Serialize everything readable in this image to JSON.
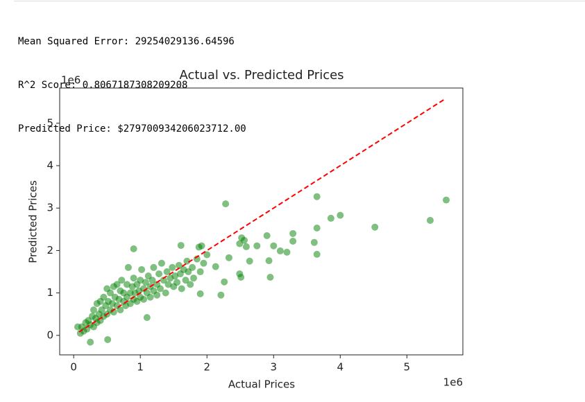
{
  "output": {
    "lines": [
      "Mean Squared Error: 29254029136.64596",
      "R^2 Score: 0.8067187308209208",
      "Predicted Price: $279700934206023712.00"
    ]
  },
  "chart_data": {
    "type": "scatter",
    "title": "Actual vs. Predicted Prices",
    "x_label": "Actual Prices",
    "y_label": "Predicted Prices",
    "x_offset_label": "1e6",
    "y_offset_label": "1e6",
    "color": "#008000",
    "x": [
      0.1,
      0.12,
      0.15,
      0.18,
      0.2,
      0.22,
      0.25,
      0.28,
      0.3,
      0.3,
      0.33,
      0.35,
      0.35,
      0.38,
      0.4,
      0.4,
      0.42,
      0.45,
      0.45,
      0.48,
      0.5,
      0.5,
      0.52,
      0.55,
      0.55,
      0.58,
      0.6,
      0.6,
      0.62,
      0.65,
      0.65,
      0.68,
      0.7,
      0.7,
      0.72,
      0.75,
      0.75,
      0.78,
      0.8,
      0.8,
      0.82,
      0.85,
      0.85,
      0.88,
      0.9,
      0.9,
      0.92,
      0.95,
      0.95,
      0.98,
      1.0,
      1.0,
      1.02,
      1.05,
      1.05,
      1.08,
      1.1,
      1.1,
      1.12,
      1.15,
      1.15,
      1.18,
      1.2,
      1.2,
      1.25,
      1.25,
      1.28,
      1.3,
      1.32,
      1.35,
      1.38,
      1.4,
      1.42,
      1.45,
      1.48,
      1.5,
      1.52,
      1.55,
      1.58,
      1.6,
      1.62,
      1.65,
      1.68,
      1.7,
      1.72,
      1.75,
      1.78,
      1.8,
      1.85,
      1.9,
      1.95,
      2.0,
      5.59,
      5.35,
      4.52,
      4.0,
      3.86,
      3.65,
      3.65,
      3.61,
      3.65,
      3.29,
      3.29,
      3.2,
      3.1,
      2.9,
      3.0,
      2.93,
      2.95,
      2.75,
      2.28,
      2.52,
      2.56,
      2.59,
      2.49,
      2.64,
      2.49,
      2.51,
      2.21,
      1.9,
      2.26,
      2.33,
      2.13,
      1.92,
      1.88,
      1.61,
      0.9,
      0.51,
      0.25,
      0.06
    ],
    "values": [
      0.05,
      0.2,
      0.1,
      0.3,
      0.15,
      0.35,
      0.25,
      0.45,
      0.2,
      0.6,
      0.4,
      0.3,
      0.75,
      0.5,
      0.35,
      0.8,
      0.6,
      0.45,
      0.9,
      0.7,
      0.5,
      1.1,
      0.8,
      0.6,
      1.0,
      0.75,
      0.55,
      1.15,
      0.9,
      0.7,
      1.2,
      0.85,
      0.6,
      1.05,
      1.3,
      0.8,
      1.0,
      0.7,
      1.2,
      0.9,
      1.6,
      1.0,
      0.75,
      1.15,
      0.85,
      1.35,
      1.0,
      1.2,
      0.8,
      1.05,
      1.3,
      0.9,
      1.55,
      1.1,
      0.85,
      1.25,
      1.0,
      0.42,
      1.4,
      1.15,
      0.9,
      1.3,
      1.05,
      1.6,
      1.2,
      0.95,
      1.45,
      1.1,
      1.7,
      1.3,
      1.0,
      1.5,
      1.2,
      1.35,
      1.6,
      1.15,
      1.4,
      1.25,
      1.65,
      1.45,
      1.1,
      1.55,
      1.3,
      1.75,
      1.5,
      1.2,
      1.6,
      1.35,
      1.8,
      1.5,
      1.7,
      1.9,
      3.19,
      2.71,
      2.55,
      2.83,
      2.76,
      3.27,
      2.53,
      2.19,
      1.91,
      2.4,
      2.22,
      1.96,
      1.99,
      2.35,
      2.11,
      1.76,
      1.37,
      2.11,
      3.1,
      2.3,
      2.24,
      2.09,
      2.16,
      1.75,
      1.45,
      1.37,
      0.95,
      0.98,
      1.26,
      1.83,
      1.62,
      2.11,
      2.08,
      2.12,
      2.04,
      -0.1,
      -0.16,
      0.2
    ],
    "reference_line": {
      "x": [
        0.08,
        5.57
      ],
      "values": [
        0.08,
        5.57
      ],
      "color": "#ff0000"
    },
    "xlim": [
      -0.21,
      5.84
    ],
    "ylim": [
      -0.46,
      5.83
    ],
    "xticks": [
      0,
      1,
      2,
      3,
      4,
      5
    ],
    "yticks": [
      0,
      1,
      2,
      3,
      4,
      5
    ]
  }
}
